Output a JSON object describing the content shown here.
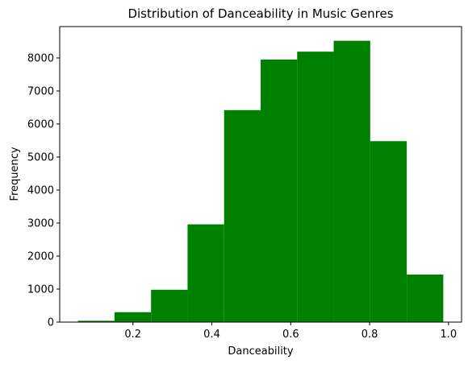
{
  "chart_data": {
    "type": "bar",
    "subtype": "histogram",
    "title": "Distribution of Danceability in Music Genres",
    "xlabel": "Danceability",
    "ylabel": "Frequency",
    "bin_edges": [
      0.0607,
      0.1533,
      0.2459,
      0.3385,
      0.4311,
      0.5237,
      0.6163,
      0.7089,
      0.8015,
      0.8941,
      0.9867
    ],
    "values": [
      40,
      300,
      980,
      2960,
      6420,
      7950,
      8190,
      8520,
      5480,
      1440
    ],
    "xlim": [
      0.0144,
      1.033
    ],
    "ylim": [
      0,
      8950
    ],
    "xticks": [
      0.2,
      0.4,
      0.6,
      0.8,
      1.0
    ],
    "xtick_labels": [
      "0.2",
      "0.4",
      "0.6",
      "0.8",
      "1.0"
    ],
    "yticks": [
      0,
      1000,
      2000,
      3000,
      4000,
      5000,
      6000,
      7000,
      8000
    ],
    "ytick_labels": [
      "0",
      "1000",
      "2000",
      "3000",
      "4000",
      "5000",
      "6000",
      "7000",
      "8000"
    ],
    "color": "#008000",
    "grid": false,
    "legend": false
  }
}
